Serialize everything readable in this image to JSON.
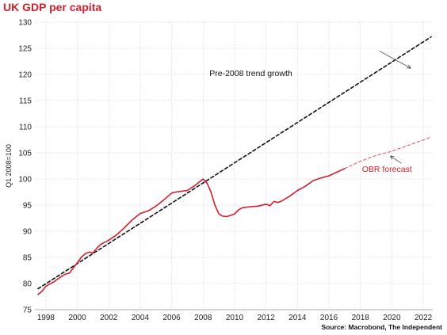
{
  "chart_data": {
    "type": "line",
    "title": "UK GDP per capita",
    "source": "Source: Macrobond, The Independent",
    "ylabel": "Q1 2008=100",
    "xlim": [
      1997.3,
      2022.6
    ],
    "ylim": [
      75,
      130
    ],
    "x_ticks": [
      1998,
      2000,
      2002,
      2004,
      2006,
      2008,
      2010,
      2012,
      2014,
      2016,
      2018,
      2020,
      2022
    ],
    "y_ticks": [
      75,
      80,
      85,
      90,
      95,
      100,
      105,
      110,
      115,
      120,
      125,
      130
    ],
    "grid": true,
    "series": [
      {
        "name": "GDP per capita",
        "color": "#d11f2e",
        "style": "solid",
        "x": [
          1997.5,
          1997.75,
          1998.0,
          1998.5,
          1999.0,
          1999.25,
          1999.5,
          2000.0,
          2000.25,
          2000.5,
          2000.75,
          2001.0,
          2001.25,
          2001.5,
          2002.0,
          2002.5,
          2003.0,
          2003.5,
          2004.0,
          2004.5,
          2005.0,
          2005.5,
          2006.0,
          2006.25,
          2006.5,
          2007.0,
          2007.5,
          2008.0,
          2008.25,
          2008.5,
          2008.75,
          2009.0,
          2009.25,
          2009.5,
          2010.0,
          2010.25,
          2010.5,
          2011.0,
          2011.5,
          2012.0,
          2012.25,
          2012.5,
          2012.75,
          2013.0,
          2013.5,
          2014.0,
          2014.5,
          2015.0,
          2015.5,
          2016.0,
          2016.5,
          2017.0
        ],
        "values": [
          77.9,
          78.5,
          79.5,
          80.3,
          81.4,
          81.8,
          82.0,
          84.0,
          85.0,
          85.7,
          86.0,
          85.9,
          86.8,
          87.5,
          88.3,
          89.3,
          90.7,
          92.2,
          93.4,
          93.9,
          94.8,
          96.0,
          97.3,
          97.5,
          97.6,
          97.8,
          98.8,
          100.0,
          99.2,
          97.5,
          95.0,
          93.3,
          92.9,
          92.8,
          93.3,
          94.1,
          94.5,
          94.7,
          94.8,
          95.2,
          94.9,
          95.7,
          95.5,
          95.8,
          96.7,
          97.8,
          98.6,
          99.7,
          100.2,
          100.6,
          101.3,
          102.0
        ]
      },
      {
        "name": "OBR forecast",
        "color": "#e36b77",
        "style": "dashed",
        "x": [
          2017.0,
          2018.0,
          2019.0,
          2020.0,
          2021.0,
          2022.5
        ],
        "values": [
          102.0,
          103.4,
          104.5,
          105.3,
          106.4,
          108.0
        ]
      },
      {
        "name": "Pre-2008 trend growth",
        "color": "#111111",
        "style": "dashed",
        "x": [
          1997.5,
          2022.5
        ],
        "values": [
          79.0,
          127.2
        ]
      }
    ],
    "annotations": [
      {
        "text": "Pre-2008 trend growth",
        "color": "#111111",
        "x": 2008.4,
        "y": 120.3,
        "arrow_to": [
          2021.2,
          121.2
        ],
        "arrow_from": [
          2019.2,
          124.5
        ]
      },
      {
        "text": "OBR forecast",
        "color": "#d11f2e",
        "x": 2018.1,
        "y": 102.0,
        "arrow_to": [
          2019.9,
          104.4
        ],
        "arrow_from": [
          2020.6,
          103.0
        ]
      }
    ]
  }
}
